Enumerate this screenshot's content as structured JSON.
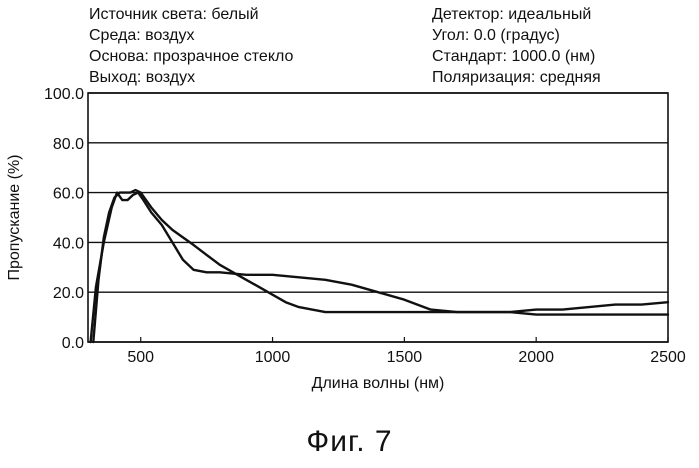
{
  "header": {
    "left": [
      "Источник света: белый",
      "Среда: воздух",
      "Основа: прозрачное стекло",
      "Выход: воздух"
    ],
    "right": [
      "Детектор: идеальный",
      "Угол: 0.0 (градус)",
      "Стандарт: 1000.0 (нм)",
      "Поляризация: средняя"
    ]
  },
  "caption": "Фиг. 7",
  "chart_data": {
    "type": "line",
    "xlabel": "Длина волны (нм)",
    "ylabel": "Пропускание (%)",
    "xlim": [
      300,
      2500
    ],
    "ylim": [
      0,
      100
    ],
    "x_ticks": [
      500,
      1000,
      1500,
      2000,
      2500
    ],
    "y_ticks": [
      0,
      20,
      40,
      60,
      80,
      100
    ],
    "x_tick_labels": [
      "500",
      "1000",
      "1500",
      "2000",
      "2500"
    ],
    "y_tick_labels": [
      "0.0",
      "20.0",
      "40.0",
      "60.0",
      "80.0",
      "100.0"
    ],
    "grid": "horizontal",
    "colors": {
      "line": "#111111",
      "grid": "#111111"
    },
    "series": [
      {
        "x": [
          310,
          330,
          360,
          390,
          410,
          430,
          450,
          470,
          490,
          510,
          540,
          580,
          620,
          660,
          700,
          750,
          800,
          900,
          1000,
          1100,
          1200,
          1300,
          1400,
          1500,
          1600,
          1700,
          1800,
          1900,
          2000,
          2100,
          2200,
          2300,
          2400,
          2500
        ],
        "values": [
          0,
          22,
          40,
          54,
          60,
          57,
          57,
          59,
          60,
          57,
          52,
          47,
          40,
          33,
          29,
          28,
          28,
          27,
          27,
          26,
          25,
          23,
          20,
          17,
          13,
          12,
          12,
          12,
          13,
          13,
          14,
          15,
          15,
          16
        ]
      },
      {
        "x": [
          320,
          340,
          360,
          380,
          400,
          420,
          440,
          460,
          480,
          500,
          540,
          580,
          620,
          660,
          700,
          750,
          800,
          850,
          900,
          950,
          1000,
          1050,
          1100,
          1200,
          1300,
          1400,
          1500,
          1600,
          1700,
          1800,
          1900,
          2000,
          2200,
          2500
        ],
        "values": [
          0,
          25,
          42,
          52,
          58,
          60,
          60,
          60,
          61,
          60,
          54,
          49,
          45,
          42,
          39,
          35,
          31,
          28,
          25,
          22,
          19,
          16,
          14,
          12,
          12,
          12,
          12,
          12,
          12,
          12,
          12,
          11,
          11,
          11
        ]
      }
    ]
  }
}
